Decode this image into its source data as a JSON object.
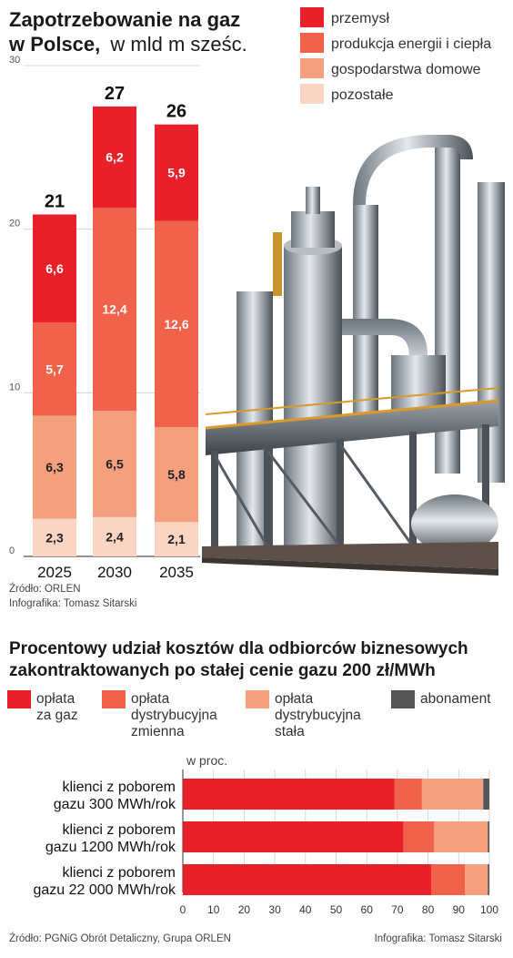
{
  "colors": {
    "industry": "#e8202a",
    "energy": "#f0624a",
    "households": "#f4a07e",
    "other": "#fbd5c4",
    "gas_fee": "#e8202a",
    "dist_variable": "#f0624a",
    "dist_fixed": "#f4a07e",
    "subscription": "#555555"
  },
  "chart_data": [
    {
      "type": "bar",
      "stacked": true,
      "title_bold": "Zapotrzebowanie na gaz",
      "title_bold_2": "w Polsce,",
      "title_light": "w mld m sześc.",
      "categories": [
        "2025",
        "2030",
        "2035"
      ],
      "totals": [
        "21",
        "27",
        "26"
      ],
      "series": [
        {
          "name": "pozostałe",
          "values": [
            2.3,
            2.4,
            2.1
          ],
          "labels": [
            "2,3",
            "2,4",
            "2,1"
          ],
          "color_key": "other"
        },
        {
          "name": "gospodarstwa domowe",
          "values": [
            6.3,
            6.5,
            5.8
          ],
          "labels": [
            "6,3",
            "6,5",
            "5,8"
          ],
          "color_key": "households"
        },
        {
          "name": "produkcja energii i ciepła",
          "values": [
            5.7,
            12.4,
            12.6
          ],
          "labels": [
            "5,7",
            "12,4",
            "12,6"
          ],
          "color_key": "energy"
        },
        {
          "name": "przemysł",
          "values": [
            6.6,
            6.2,
            5.9
          ],
          "labels": [
            "6,6",
            "6,2",
            "5,9"
          ],
          "color_key": "industry"
        }
      ],
      "legend_order": [
        "przemysł",
        "produkcja energii i ciepła",
        "gospodarstwa domowe",
        "pozostałe"
      ],
      "ylim": [
        0,
        30
      ],
      "yticks": [
        "0",
        "10",
        "20",
        "30"
      ],
      "grid": true,
      "source": "Źródło: ORLEN",
      "credit": "Infografika: Tomasz Sitarski"
    },
    {
      "type": "bar",
      "orientation": "horizontal",
      "stacked": true,
      "title_line1": "Procentowy udział kosztów dla odbiorców biznesowych",
      "title_line2": "zakontraktowanych po stałej cenie gazu 200 zł/MWh",
      "unit": "w proc.",
      "categories": [
        [
          "klienci z poborem",
          "gazu 300 MWh/rok"
        ],
        [
          "klienci z poborem",
          "gazu 1200 MWh/rok"
        ],
        [
          "klienci z poborem",
          "gazu 22 000 MWh/rok"
        ]
      ],
      "series": [
        {
          "name": [
            "opłata",
            "za gaz"
          ],
          "values": [
            69,
            72,
            81
          ],
          "color_key": "gas_fee"
        },
        {
          "name": [
            "opłata",
            "dystrybucyjna",
            "zmienna"
          ],
          "values": [
            9,
            10,
            11
          ],
          "color_key": "dist_variable"
        },
        {
          "name": [
            "opłata",
            "dystrybucyjna",
            "stała"
          ],
          "values": [
            20,
            17.5,
            7.5
          ],
          "color_key": "dist_fixed"
        },
        {
          "name": [
            "abonament"
          ],
          "values": [
            2,
            0.5,
            0.5
          ],
          "color_key": "subscription"
        }
      ],
      "xlim": [
        0,
        100
      ],
      "xticks": [
        "0",
        "10",
        "20",
        "30",
        "40",
        "50",
        "60",
        "70",
        "80",
        "90",
        "100"
      ],
      "grid": true,
      "source": "Źródło: PGNiG Obrót Detaliczny, Grupa ORLEN",
      "credit": "Infografika: Tomasz Sitarski"
    }
  ]
}
